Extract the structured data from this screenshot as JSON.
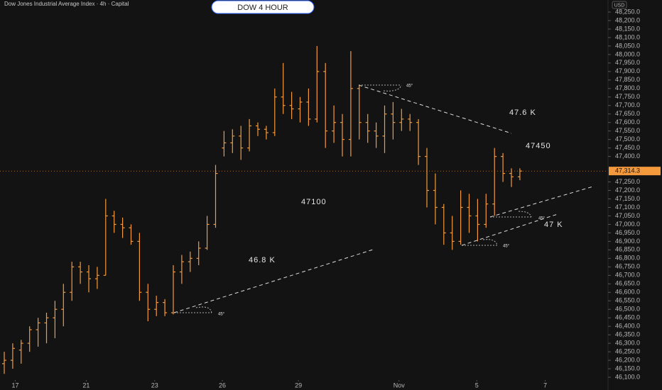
{
  "chart_data": {
    "type": "ohlc",
    "title": "Dow Jones Industrial Average Index · 4h · Capital",
    "badge": "DOW 4 HOUR",
    "currency": "USD",
    "color": "#f59a3c",
    "last_price": 47314.3,
    "last_price_label": "47,314.3",
    "annotations": [
      "47.6 K",
      "47450",
      "47100",
      "46.8 K",
      "47 K",
      "45°",
      "45°",
      "45°",
      "45°"
    ],
    "ylim": [
      46025,
      48321
    ],
    "yticks": [
      {
        "value": 46100,
        "label": "46,100.0"
      },
      {
        "value": 46150,
        "label": "46,150.0"
      },
      {
        "value": 46200,
        "label": "46,200.0"
      },
      {
        "value": 46250,
        "label": "46,250.0"
      },
      {
        "value": 46300,
        "label": "46,300.0"
      },
      {
        "value": 46350,
        "label": "46,350.0"
      },
      {
        "value": 46400,
        "label": "46,400.0"
      },
      {
        "value": 46450,
        "label": "46,450.0"
      },
      {
        "value": 46500,
        "label": "46,500.0"
      },
      {
        "value": 46550,
        "label": "46,550.0"
      },
      {
        "value": 46600,
        "label": "46,600.0"
      },
      {
        "value": 46650,
        "label": "46,650.0"
      },
      {
        "value": 46700,
        "label": "46,700.0"
      },
      {
        "value": 46750,
        "label": "46,750.0"
      },
      {
        "value": 46800,
        "label": "46,800.0"
      },
      {
        "value": 46850,
        "label": "46,850.0"
      },
      {
        "value": 46900,
        "label": "46,900.0"
      },
      {
        "value": 46950,
        "label": "46,950.0"
      },
      {
        "value": 47000,
        "label": "47,000.0"
      },
      {
        "value": 47050,
        "label": "47,050.0"
      },
      {
        "value": 47100,
        "label": "47,100.0"
      },
      {
        "value": 47150,
        "label": "47,150.0"
      },
      {
        "value": 47200,
        "label": "47,200.0"
      },
      {
        "value": 47250,
        "label": "47,250.0"
      },
      {
        "value": 47400,
        "label": "47,400.0"
      },
      {
        "value": 47450,
        "label": "47,450.0"
      },
      {
        "value": 47500,
        "label": "47,500.0"
      },
      {
        "value": 47550,
        "label": "47,550.0"
      },
      {
        "value": 47600,
        "label": "47,600.0"
      },
      {
        "value": 47650,
        "label": "47,650.0"
      },
      {
        "value": 47700,
        "label": "47,700.0"
      },
      {
        "value": 47750,
        "label": "47,750.0"
      },
      {
        "value": 47800,
        "label": "47,800.0"
      },
      {
        "value": 47850,
        "label": "47,850.0"
      },
      {
        "value": 47900,
        "label": "47,900.0"
      },
      {
        "value": 47950,
        "label": "47,950.0"
      },
      {
        "value": 48000,
        "label": "48,000.0"
      },
      {
        "value": 48050,
        "label": "48,050.0"
      },
      {
        "value": 48100,
        "label": "48,100.0"
      },
      {
        "value": 48150,
        "label": "48,150.0"
      },
      {
        "value": 48200,
        "label": "48,200.0"
      },
      {
        "value": 48250,
        "label": "48,250.0"
      }
    ],
    "xticks": [
      {
        "value": 1.3,
        "label": "17"
      },
      {
        "value": 9.7,
        "label": "21"
      },
      {
        "value": 17.8,
        "label": "23"
      },
      {
        "value": 25.8,
        "label": "26"
      },
      {
        "value": 34.8,
        "label": "29"
      },
      {
        "value": 46.7,
        "label": "Nov"
      },
      {
        "value": 55.9,
        "label": "5"
      },
      {
        "value": 64,
        "label": "7"
      }
    ],
    "open": [
      46180,
      46200,
      46260,
      46300,
      46380,
      46420,
      46450,
      46500,
      46600,
      46750,
      46720,
      46680,
      46700,
      47050,
      47000,
      46980,
      46900,
      46600,
      46500,
      46540,
      46480,
      46720,
      46780,
      46800,
      46860,
      47000,
      47450,
      47480,
      47520,
      47450,
      47580,
      47560,
      47540,
      47750,
      47700,
      47680,
      47720,
      47620,
      47900,
      47550,
      47600,
      47500,
      47800,
      47600,
      47550,
      47520,
      47650,
      47600,
      47620,
      47600,
      47400,
      47200,
      47100,
      46950,
      46900,
      47100,
      47050,
      47000,
      47120,
      47400,
      47300,
      47280
    ],
    "high": [
      46250,
      46300,
      46320,
      46400,
      46450,
      46480,
      46550,
      46650,
      46780,
      46780,
      46760,
      46750,
      47150,
      47080,
      47040,
      47000,
      46950,
      46650,
      46580,
      46560,
      46760,
      46820,
      46840,
      46900,
      47050,
      47350,
      47550,
      47560,
      47580,
      47620,
      47600,
      47580,
      47800,
      47950,
      47780,
      47750,
      47800,
      48050,
      47950,
      47700,
      47650,
      48020,
      47820,
      47650,
      47600,
      47700,
      47720,
      47680,
      47650,
      47620,
      47450,
      47300,
      47120,
      47050,
      47200,
      47180,
      47150,
      47180,
      47450,
      47420,
      47330,
      47330
    ],
    "low": [
      46120,
      46150,
      46180,
      46250,
      46280,
      46300,
      46330,
      46400,
      46550,
      46650,
      46600,
      46620,
      46700,
      46950,
      46920,
      46880,
      46550,
      46430,
      46460,
      46460,
      46470,
      46650,
      46720,
      46760,
      46850,
      46980,
      47400,
      47420,
      47380,
      47430,
      47520,
      47500,
      47520,
      47650,
      47620,
      47600,
      47580,
      47600,
      47450,
      47480,
      47400,
      47400,
      47500,
      47480,
      47450,
      47420,
      47500,
      47550,
      47550,
      47350,
      47100,
      47000,
      46880,
      46850,
      46880,
      46950,
      46900,
      46980,
      47050,
      47250,
      47220,
      47260
    ],
    "close": [
      46200,
      46270,
      46300,
      46380,
      46420,
      46450,
      46500,
      46600,
      46750,
      46720,
      46680,
      46700,
      47050,
      47000,
      46980,
      46900,
      46600,
      46500,
      46540,
      46480,
      46720,
      46780,
      46800,
      46860,
      47000,
      47300,
      47480,
      47520,
      47450,
      47580,
      47560,
      47540,
      47750,
      47700,
      47680,
      47720,
      47620,
      47900,
      47550,
      47600,
      47500,
      47800,
      47600,
      47550,
      47520,
      47650,
      47600,
      47620,
      47600,
      47400,
      47200,
      47100,
      46950,
      46900,
      47100,
      47050,
      47000,
      47120,
      47400,
      47300,
      47280,
      47314
    ]
  }
}
